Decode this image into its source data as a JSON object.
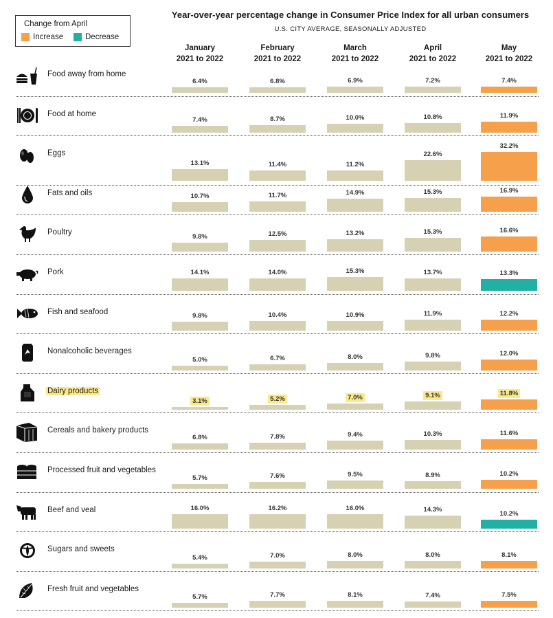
{
  "title": "Year-over-year percentage change in Consumer Price Index for all urban consumers",
  "subtitle": "U.S. CITY AVERAGE, SEASONALLY ADJUSTED",
  "legend": {
    "title": "Change from April",
    "increase": "Increase",
    "decrease": "Decrease"
  },
  "colors": {
    "base": "#d6d1b3",
    "increase": "#f7a04b",
    "decrease": "#22b0a4",
    "highlight": "#fbe98a"
  },
  "columns": [
    {
      "month": "January",
      "period": "2021 to 2022"
    },
    {
      "month": "February",
      "period": "2021 to 2022"
    },
    {
      "month": "March",
      "period": "2021 to 2022"
    },
    {
      "month": "April",
      "period": "2021 to 2022"
    },
    {
      "month": "May",
      "period": "2021 to 2022"
    }
  ],
  "chart_data": {
    "type": "bar",
    "categories": [
      "January",
      "February",
      "March",
      "April",
      "May"
    ],
    "unit": "%",
    "rows": [
      {
        "label": "Food away from home",
        "icon": "burger-drink-icon",
        "values": [
          6.4,
          6.8,
          6.9,
          7.2,
          7.4
        ],
        "display": [
          "6.4%",
          "6.8%",
          "6.9%",
          "7.2%",
          "7.4%"
        ],
        "change": "increase",
        "highlight": false
      },
      {
        "label": "Food at home",
        "icon": "plate-utensils-icon",
        "values": [
          7.4,
          8.7,
          10.0,
          10.8,
          11.9
        ],
        "display": [
          "7.4%",
          "8.7%",
          "10.0%",
          "10.8%",
          "11.9%"
        ],
        "change": "increase",
        "highlight": false
      },
      {
        "label": "Eggs",
        "icon": "eggs-icon",
        "values": [
          13.1,
          11.4,
          11.2,
          22.6,
          32.2
        ],
        "display": [
          "13.1%",
          "11.4%",
          "11.2%",
          "22.6%",
          "32.2%"
        ],
        "change": "increase",
        "highlight": false
      },
      {
        "label": "Fats and oils",
        "icon": "oil-drop-icon",
        "values": [
          10.7,
          11.7,
          14.9,
          15.3,
          16.9
        ],
        "display": [
          "10.7%",
          "11.7%",
          "14.9%",
          "15.3%",
          "16.9%"
        ],
        "change": "increase",
        "highlight": false
      },
      {
        "label": "Poultry",
        "icon": "chicken-icon",
        "values": [
          9.8,
          12.5,
          13.2,
          15.3,
          16.6
        ],
        "display": [
          "9.8%",
          "12.5%",
          "13.2%",
          "15.3%",
          "16.6%"
        ],
        "change": "increase",
        "highlight": false
      },
      {
        "label": "Pork",
        "icon": "pig-icon",
        "values": [
          14.1,
          14.0,
          15.3,
          13.7,
          13.3
        ],
        "display": [
          "14.1%",
          "14.0%",
          "15.3%",
          "13.7%",
          "13.3%"
        ],
        "change": "decrease",
        "highlight": false
      },
      {
        "label": "Fish and seafood",
        "icon": "fish-icon",
        "values": [
          9.8,
          10.4,
          10.9,
          11.9,
          12.2
        ],
        "display": [
          "9.8%",
          "10.4%",
          "10.9%",
          "11.9%",
          "12.2%"
        ],
        "change": "increase",
        "highlight": false
      },
      {
        "label": "Nonalcoholic beverages",
        "icon": "soda-can-icon",
        "values": [
          5.0,
          6.7,
          8.0,
          9.8,
          12.0
        ],
        "display": [
          "5.0%",
          "6.7%",
          "8.0%",
          "9.8%",
          "12.0%"
        ],
        "change": "increase",
        "highlight": false
      },
      {
        "label": "Dairy products",
        "icon": "milk-jug-icon",
        "values": [
          3.1,
          5.2,
          7.0,
          9.1,
          11.8
        ],
        "display": [
          "3.1%",
          "5.2%",
          "7.0%",
          "9.1%",
          "11.8%"
        ],
        "change": "increase",
        "highlight": true
      },
      {
        "label": "Cereals and bakery products",
        "icon": "bread-icon",
        "values": [
          6.8,
          7.8,
          9.4,
          10.3,
          11.6
        ],
        "display": [
          "6.8%",
          "7.8%",
          "9.4%",
          "10.3%",
          "11.6%"
        ],
        "change": "increase",
        "highlight": false
      },
      {
        "label": "Processed fruit and vegetables",
        "icon": "cans-icon",
        "values": [
          5.7,
          7.6,
          9.5,
          8.9,
          10.2
        ],
        "display": [
          "5.7%",
          "7.6%",
          "9.5%",
          "8.9%",
          "10.2%"
        ],
        "change": "increase",
        "highlight": false
      },
      {
        "label": "Beef and veal",
        "icon": "cow-icon",
        "values": [
          16.0,
          16.2,
          16.0,
          14.3,
          10.2
        ],
        "display": [
          "16.0%",
          "16.2%",
          "16.0%",
          "14.3%",
          "10.2%"
        ],
        "change": "decrease",
        "highlight": false
      },
      {
        "label": "Sugars and sweets",
        "icon": "candy-icon",
        "values": [
          5.4,
          7.0,
          8.0,
          8.0,
          8.1
        ],
        "display": [
          "5.4%",
          "7.0%",
          "8.0%",
          "8.0%",
          "8.1%"
        ],
        "change": "increase",
        "highlight": false
      },
      {
        "label": "Fresh fruit and vegetables",
        "icon": "leaf-icon",
        "values": [
          5.7,
          7.7,
          8.1,
          7.4,
          7.5
        ],
        "display": [
          "5.7%",
          "7.7%",
          "8.1%",
          "7.4%",
          "7.5%"
        ],
        "change": "increase",
        "highlight": false
      }
    ]
  }
}
